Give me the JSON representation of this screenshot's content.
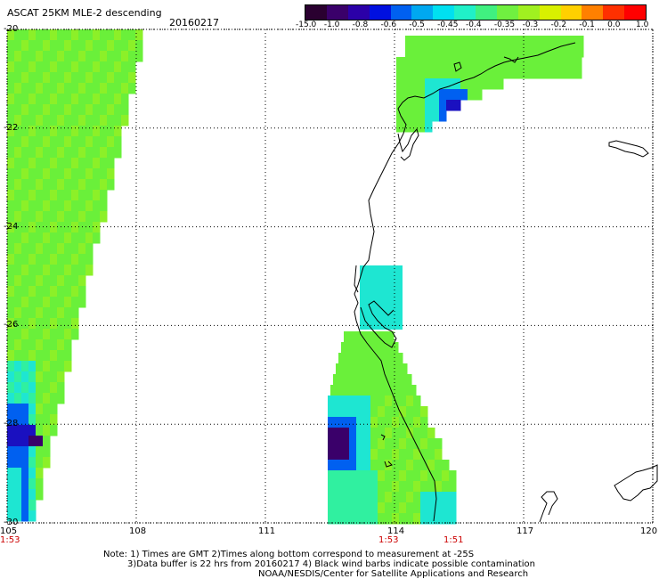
{
  "header": {
    "product_title": "ASCAT 25KM MLE-2 descending",
    "date": "20160217"
  },
  "colorbar": {
    "colors": [
      "#2a0030",
      "#3a006a",
      "#2b00a8",
      "#0010e0",
      "#0060f0",
      "#00a8f0",
      "#00e0f0",
      "#20f0c8",
      "#40f080",
      "#70f040",
      "#a0f020",
      "#d8f000",
      "#ffd000",
      "#ff8000",
      "#ff3000",
      "#ff0000"
    ],
    "tick_labels": [
      "-15.0",
      "-1.0",
      "-0.8",
      "-0.6",
      "-0.5",
      "-0.45",
      "-0.4",
      "-0.35",
      "-0.3",
      "-0.2",
      "-0.1",
      "0.0",
      "1.0"
    ]
  },
  "axes": {
    "lon_labels": [
      "105",
      "108",
      "111",
      "114",
      "117",
      "120"
    ],
    "lat_labels": [
      "-20",
      "-22",
      "-24",
      "-26",
      "-28",
      "-30"
    ]
  },
  "pass_times": [
    "1:53",
    "1:53",
    "1:51"
  ],
  "colors": {
    "pass_time": "#cc0000",
    "grid": "#000000",
    "coast": "#000000"
  },
  "footer": {
    "line1": "Note: 1) Times are GMT 2)Times along bottom correspond to measurement at -25S",
    "line2": "3)Data buffer is 22 hrs from 20160217 4) Black wind barbs indicate possible contamination",
    "line3": "NOAA/NESDIS/Center for Satellite Applications and Research"
  }
}
